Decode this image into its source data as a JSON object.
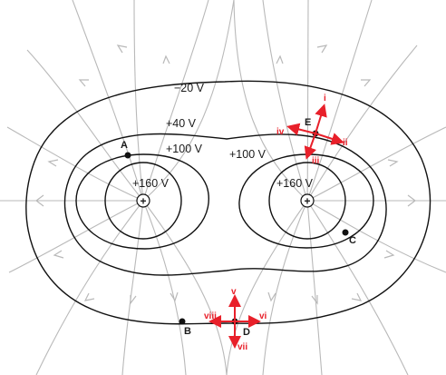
{
  "colors": {
    "field_line": "#b9b9b9",
    "equipotential": "#111111",
    "vector": "#e8202a",
    "point": "#111111"
  },
  "equipotentials": {
    "outer": "−20 V",
    "middle": "+40 V",
    "inner_left": "+100 V",
    "inner_right": "+100 V",
    "core_left": "+160 V",
    "core_right": "+160 V"
  },
  "charges": {
    "left_symbol": "+",
    "right_symbol": "+"
  },
  "points": {
    "A": "A",
    "B": "B",
    "C": "C",
    "D": "D",
    "E": "E"
  },
  "vectors_E": {
    "up": "i",
    "right": "ii",
    "down": "iii",
    "left": "iv"
  },
  "vectors_D": {
    "up": "v",
    "right": "vi",
    "down": "vii",
    "left": "viii"
  }
}
